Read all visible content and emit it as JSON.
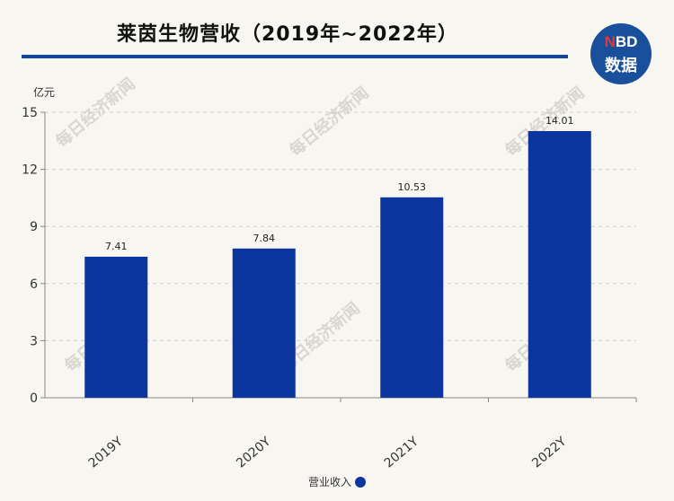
{
  "title": "莱茵生物营收（2019年~2022年）",
  "logo": {
    "top_prefix": "N",
    "top_rest": "BD",
    "bottom": "数据"
  },
  "watermark": "每日经济新闻",
  "legend": {
    "label": "营业收入"
  },
  "colors": {
    "bar": "#0d35a0",
    "accent": "#0d47a1",
    "logo_bg": "#1a4f9c"
  },
  "chart_data": {
    "type": "bar",
    "unit_label": "亿元",
    "categories": [
      "2019Y",
      "2020Y",
      "2021Y",
      "2022Y"
    ],
    "series": [
      {
        "name": "营业收入",
        "values": [
          7.41,
          7.84,
          10.53,
          14.01
        ],
        "labels": [
          "7.41",
          "7.84",
          "10.53",
          "14.01"
        ]
      }
    ],
    "ylim": [
      0,
      15
    ],
    "yticks": [
      0,
      3,
      6,
      9,
      12,
      15
    ],
    "grid": true,
    "legend_position": "bottom"
  }
}
